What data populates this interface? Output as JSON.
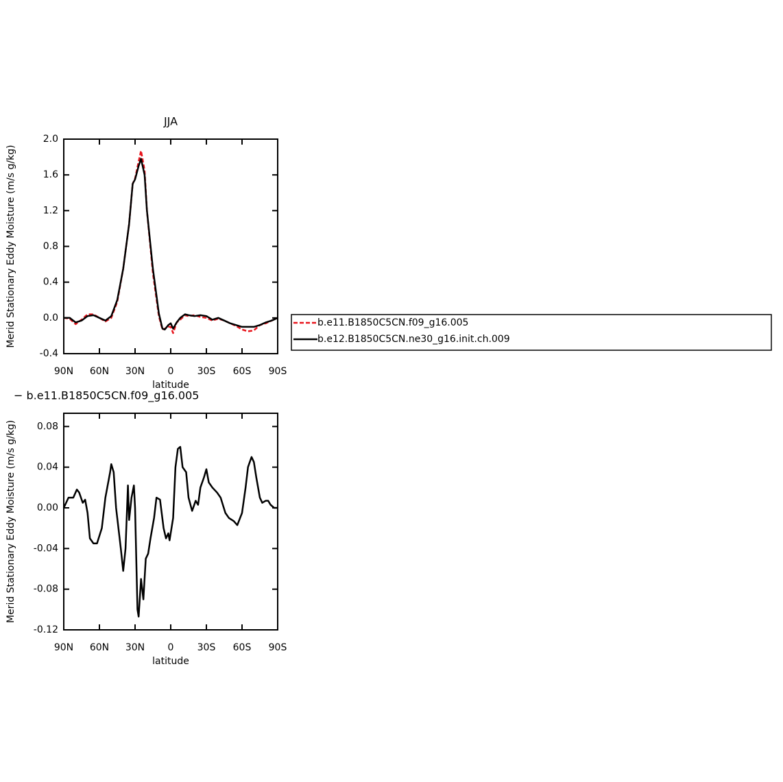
{
  "chart_data": [
    {
      "type": "line",
      "title": "JJA",
      "xlabel": "latitude",
      "ylabel": "Merid Stationary Eddy Moisture (m/s g/kg)",
      "x": [
        90,
        85,
        80,
        75,
        70,
        65,
        60,
        55,
        50,
        45,
        40,
        35,
        32,
        30,
        27,
        25,
        22,
        20,
        15,
        10,
        7,
        5,
        2,
        0,
        -2,
        -5,
        -8,
        -12,
        -15,
        -20,
        -25,
        -30,
        -35,
        -40,
        -45,
        -50,
        -55,
        -60,
        -65,
        -70,
        -75,
        -80,
        -85,
        -90
      ],
      "series": [
        {
          "name": "b.e11.B1850C5CN.f09_g16.005",
          "color": "#e8141c",
          "dashed": true,
          "values": [
            0,
            -0.01,
            -0.07,
            -0.02,
            0.04,
            0.04,
            0,
            -0.04,
            0,
            0.18,
            0.55,
            1.05,
            1.5,
            1.56,
            1.75,
            1.87,
            1.65,
            1.2,
            0.5,
            0.02,
            -0.13,
            -0.12,
            -0.1,
            -0.1,
            -0.17,
            -0.05,
            -0.02,
            0.03,
            0.02,
            0.03,
            0.01,
            0,
            -0.03,
            -0.01,
            -0.03,
            -0.06,
            -0.09,
            -0.13,
            -0.15,
            -0.14,
            -0.08,
            -0.06,
            -0.03,
            0
          ]
        },
        {
          "name": "b.e12.B1850C5CN.ne30_g16.init.ch.009",
          "color": "#000000",
          "dashed": false,
          "values": [
            0,
            0,
            -0.05,
            -0.03,
            0.02,
            0.03,
            0,
            -0.03,
            0.02,
            0.2,
            0.55,
            1.05,
            1.5,
            1.55,
            1.7,
            1.78,
            1.6,
            1.2,
            0.55,
            0.05,
            -0.12,
            -0.13,
            -0.08,
            -0.06,
            -0.12,
            -0.05,
            0,
            0.04,
            0.03,
            0.02,
            0.03,
            0.02,
            -0.02,
            0,
            -0.03,
            -0.06,
            -0.08,
            -0.1,
            -0.1,
            -0.1,
            -0.08,
            -0.05,
            -0.03,
            0
          ]
        }
      ],
      "xlim": [
        90,
        -90
      ],
      "xticks": [
        {
          "value": 90,
          "label": "90N"
        },
        {
          "value": 60,
          "label": "60N"
        },
        {
          "value": 30,
          "label": "30N"
        },
        0,
        {
          "value": -30,
          "label": "30S"
        },
        {
          "value": -60,
          "label": "60S"
        },
        {
          "value": -90,
          "label": "90S"
        }
      ],
      "ylim": [
        -0.4,
        2
      ],
      "yticks": [
        -0.4,
        {
          "value": 0,
          "label": "0.0"
        },
        0.4,
        0.8,
        1.2,
        1.6,
        {
          "value": 2,
          "label": "2.0"
        }
      ],
      "legend": "right"
    },
    {
      "type": "line",
      "title": "− b.e11.B1850C5CN.f09_g16.005",
      "xlabel": "latitude",
      "ylabel": "Merid Stationary Eddy Moisture (m/s g/kg)",
      "x": [
        90,
        86,
        82,
        79,
        77,
        74,
        72,
        70,
        68,
        65,
        62,
        58,
        55,
        51,
        50,
        48,
        46,
        42,
        40,
        38,
        36,
        35,
        33,
        31,
        30,
        28,
        27,
        25,
        23,
        21,
        19,
        17,
        14,
        12,
        9,
        6,
        4,
        2,
        1,
        -2,
        -4,
        -6,
        -8,
        -10,
        -13,
        -15,
        -18,
        -21,
        -23,
        -25,
        -28,
        -30,
        -32,
        -35,
        -39,
        -42,
        -46,
        -49,
        -53,
        -56,
        -60,
        -63,
        -65,
        -68,
        -70,
        -72,
        -75,
        -77,
        -80,
        -82,
        -84,
        -87,
        -90
      ],
      "series": [
        {
          "color": "#000000",
          "dashed": false,
          "values": [
            0,
            0.01,
            0.01,
            0.018,
            0.015,
            0.005,
            0.008,
            -0.005,
            -0.03,
            -0.035,
            -0.035,
            -0.02,
            0.01,
            0.035,
            0.043,
            0.035,
            0,
            -0.04,
            -0.062,
            -0.04,
            0.022,
            -0.012,
            0.01,
            0.022,
            0,
            -0.1,
            -0.107,
            -0.07,
            -0.09,
            -0.05,
            -0.045,
            -0.03,
            -0.01,
            0.01,
            0.008,
            -0.02,
            -0.03,
            -0.025,
            -0.032,
            -0.01,
            0.04,
            0.058,
            0.06,
            0.04,
            0.035,
            0.01,
            -0.003,
            0.007,
            0.003,
            0.02,
            0.03,
            0.038,
            0.025,
            0.02,
            0.015,
            0.01,
            -0.005,
            -0.01,
            -0.013,
            -0.017,
            -0.005,
            0.02,
            0.04,
            0.05,
            0.045,
            0.03,
            0.01,
            0.005,
            0.007,
            0.007,
            0.003,
            0,
            0
          ]
        }
      ],
      "xlim": [
        90,
        -90
      ],
      "xticks": [
        {
          "value": 90,
          "label": "90N"
        },
        {
          "value": 60,
          "label": "60N"
        },
        {
          "value": 30,
          "label": "30N"
        },
        0,
        {
          "value": -30,
          "label": "30S"
        },
        {
          "value": -60,
          "label": "60S"
        },
        {
          "value": -90,
          "label": "90S"
        }
      ],
      "ylim": [
        -0.12,
        0.093
      ],
      "yticks": [
        -0.12,
        -0.08,
        -0.04,
        {
          "value": 0,
          "label": "0.00"
        },
        0.04,
        0.08
      ]
    }
  ]
}
